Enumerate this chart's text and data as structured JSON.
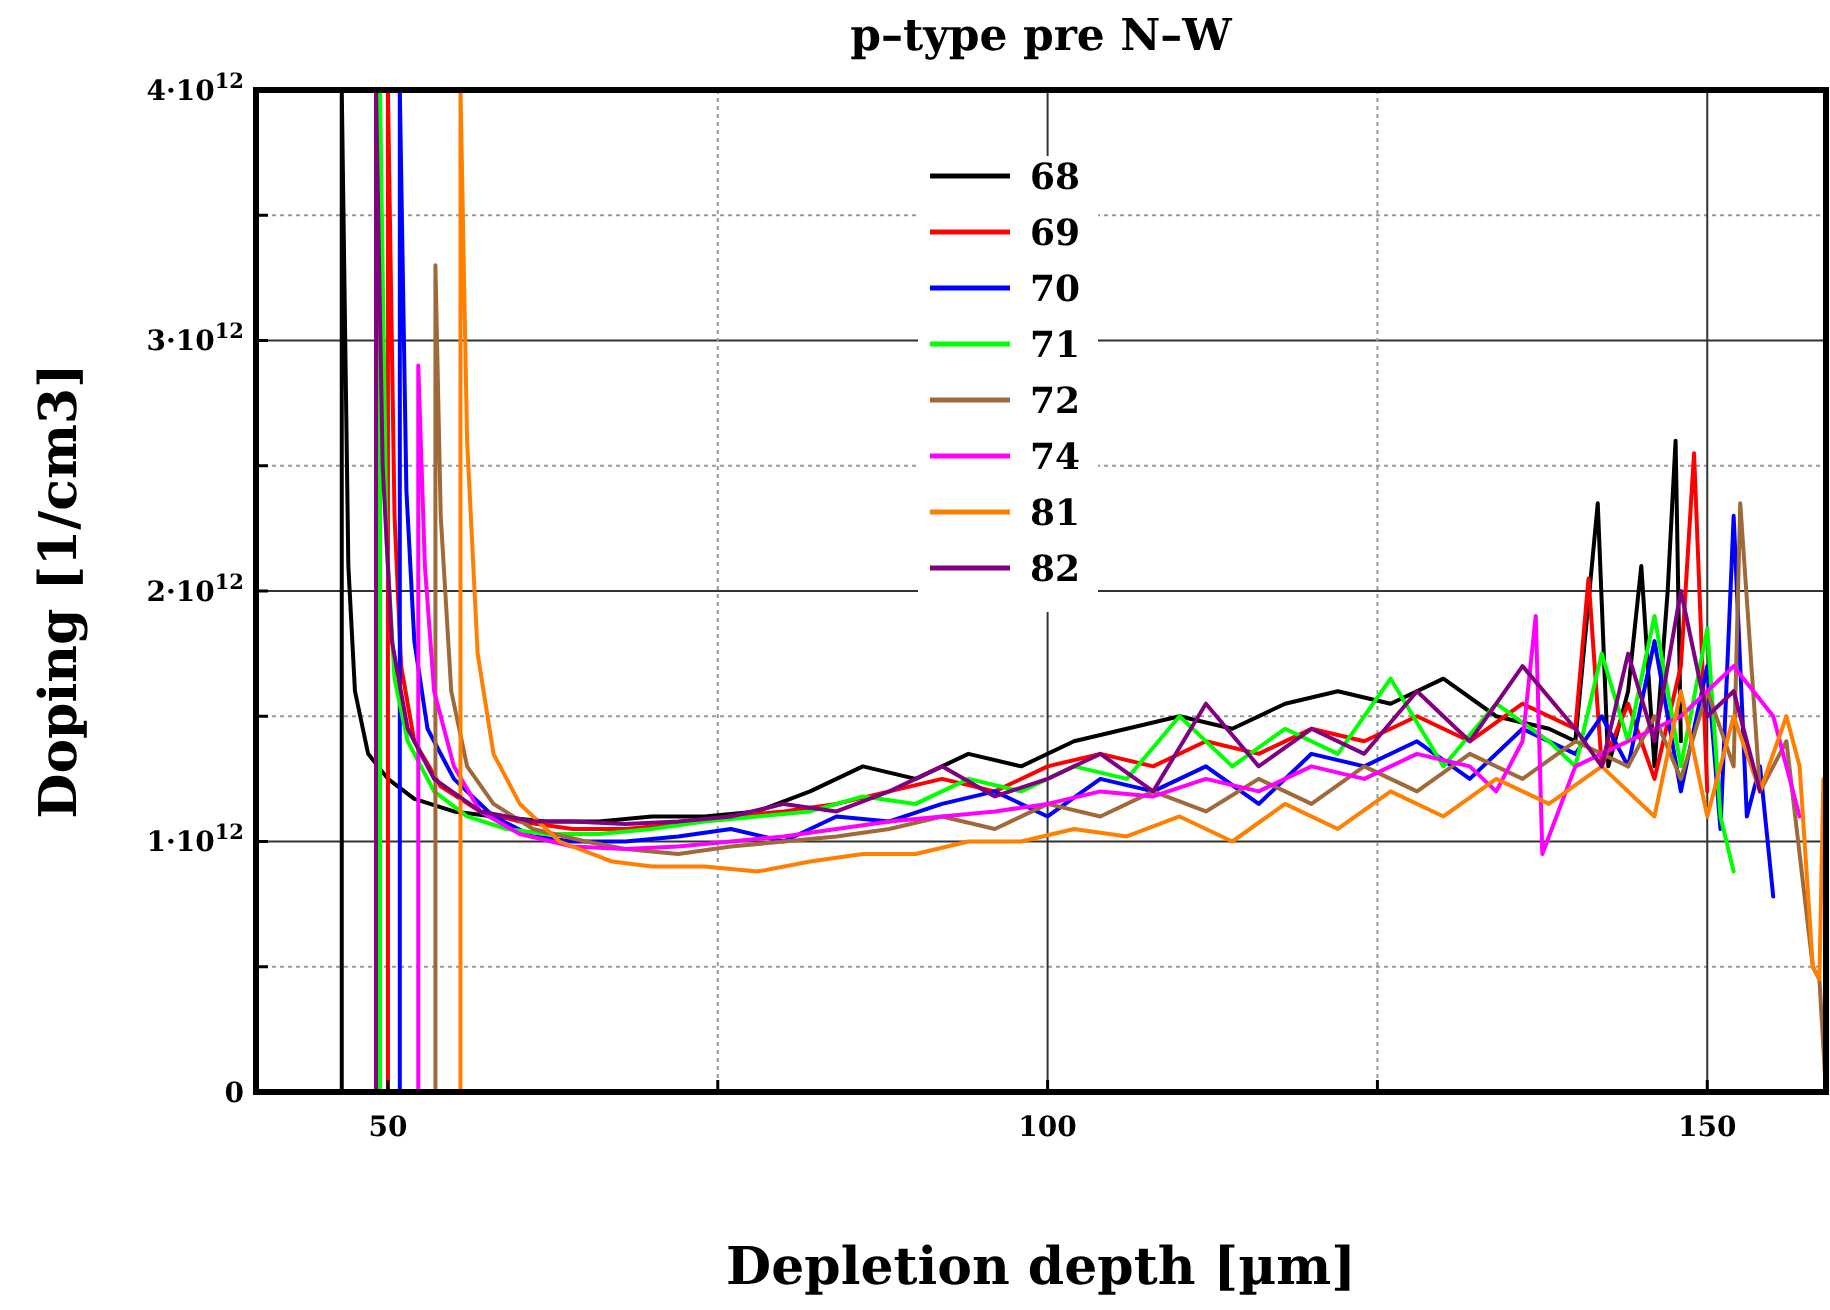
{
  "chart_data": {
    "type": "line",
    "title": "p–type pre N–W",
    "xlabel": "Depletion depth [µm]",
    "ylabel": "Doping [1/cm3]",
    "xlim": [
      40,
      159
    ],
    "xticks": [
      50,
      {
        "value": 75,
        "label": null
      },
      100,
      {
        "value": 125,
        "label": null
      },
      150
    ],
    "ylim": [
      0,
      4000000000000.0
    ],
    "yticks": [
      {
        "value": 0,
        "label": "0"
      },
      {
        "value": 500000000000.0,
        "label": null
      },
      {
        "value": 1000000000000.0,
        "label": "1·10$^{12}$"
      },
      {
        "value": 1500000000000.0,
        "label": null
      },
      {
        "value": 2000000000000.0,
        "label": "2·10$^{12}$"
      },
      {
        "value": 2500000000000.0,
        "label": null
      },
      {
        "value": 3000000000000.0,
        "label": "3·10$^{12}$"
      },
      {
        "value": 3500000000000.0,
        "label": null
      },
      {
        "value": 4000000000000.0,
        "label": "4·10$^{12}$"
      }
    ],
    "grid": true,
    "legend": "top",
    "line_style": "solid",
    "marker": "none",
    "series": [
      {
        "name": "68",
        "color": "#000000",
        "x": [
          46.5,
          46.5,
          47,
          47.5,
          48.5,
          50,
          52,
          55,
          58,
          62,
          66,
          70,
          74,
          78,
          82,
          86,
          90,
          94,
          98,
          102,
          106,
          110,
          114,
          118,
          122,
          126,
          130,
          134,
          138,
          140,
          141.7,
          142.5,
          144,
          145,
          146,
          147,
          147.6,
          148
        ],
        "values": [
          0,
          4000000000000.0,
          2100000000000.0,
          1600000000000.0,
          1350000000000.0,
          1250000000000.0,
          1170000000000.0,
          1120000000000.0,
          1100000000000.0,
          1080000000000.0,
          1080000000000.0,
          1100000000000.0,
          1100000000000.0,
          1120000000000.0,
          1200000000000.0,
          1300000000000.0,
          1250000000000.0,
          1350000000000.0,
          1300000000000.0,
          1400000000000.0,
          1450000000000.0,
          1500000000000.0,
          1450000000000.0,
          1550000000000.0,
          1600000000000.0,
          1550000000000.0,
          1650000000000.0,
          1500000000000.0,
          1450000000000.0,
          1400000000000.0,
          2350000000000.0,
          1300000000000.0,
          1600000000000.0,
          2100000000000.0,
          1300000000000.0,
          2000000000000.0,
          2600000000000.0,
          1400000000000.0
        ]
      },
      {
        "name": "69",
        "color": "#ff0000",
        "x": [
          50,
          50,
          50.5,
          51,
          52,
          54,
          57,
          60,
          64,
          68,
          72,
          76,
          80,
          84,
          88,
          92,
          96,
          100,
          104,
          108,
          112,
          116,
          120,
          124,
          128,
          132,
          136,
          140,
          141,
          142,
          144,
          146,
          148,
          149,
          150
        ],
        "values": [
          0,
          4000000000000.0,
          2300000000000.0,
          1700000000000.0,
          1400000000000.0,
          1220000000000.0,
          1120000000000.0,
          1080000000000.0,
          1050000000000.0,
          1050000000000.0,
          1070000000000.0,
          1100000000000.0,
          1120000000000.0,
          1150000000000.0,
          1200000000000.0,
          1250000000000.0,
          1200000000000.0,
          1300000000000.0,
          1350000000000.0,
          1300000000000.0,
          1400000000000.0,
          1350000000000.0,
          1450000000000.0,
          1400000000000.0,
          1500000000000.0,
          1400000000000.0,
          1550000000000.0,
          1450000000000.0,
          2050000000000.0,
          1300000000000.0,
          1550000000000.0,
          1250000000000.0,
          1700000000000.0,
          2550000000000.0,
          1200000000000.0
        ]
      },
      {
        "name": "70",
        "color": "#0000ff",
        "x": [
          50.9,
          50.9,
          51.4,
          52,
          53,
          55,
          58,
          61,
          64,
          68,
          72,
          76,
          80,
          84,
          88,
          92,
          96,
          100,
          104,
          108,
          112,
          116,
          120,
          124,
          128,
          132,
          136,
          140,
          142,
          144,
          146,
          148,
          150,
          151,
          152,
          153,
          154,
          155
        ],
        "values": [
          0,
          4000000000000.0,
          2400000000000.0,
          1800000000000.0,
          1450000000000.0,
          1250000000000.0,
          1100000000000.0,
          1020000000000.0,
          1000000000000.0,
          1000000000000.0,
          1020000000000.0,
          1050000000000.0,
          1000000000000.0,
          1100000000000.0,
          1080000000000.0,
          1150000000000.0,
          1200000000000.0,
          1100000000000.0,
          1250000000000.0,
          1200000000000.0,
          1300000000000.0,
          1150000000000.0,
          1350000000000.0,
          1300000000000.0,
          1400000000000.0,
          1250000000000.0,
          1450000000000.0,
          1350000000000.0,
          1500000000000.0,
          1300000000000.0,
          1800000000000.0,
          1200000000000.0,
          1700000000000.0,
          1050000000000.0,
          2300000000000.0,
          1100000000000.0,
          1300000000000.0,
          780000000000.0
        ]
      },
      {
        "name": "71",
        "color": "#00ff00",
        "x": [
          49.4,
          49.4,
          49.9,
          50.5,
          51.5,
          53.5,
          56,
          59,
          62,
          66,
          70,
          74,
          78,
          82,
          86,
          90,
          94,
          98,
          102,
          106,
          110,
          114,
          118,
          122,
          126,
          130,
          134,
          138,
          140,
          142,
          144,
          146,
          148,
          150,
          151,
          152
        ],
        "values": [
          0,
          4000000000000.0,
          2200000000000.0,
          1650000000000.0,
          1400000000000.0,
          1200000000000.0,
          1100000000000.0,
          1050000000000.0,
          1030000000000.0,
          1030000000000.0,
          1050000000000.0,
          1080000000000.0,
          1100000000000.0,
          1120000000000.0,
          1180000000000.0,
          1150000000000.0,
          1250000000000.0,
          1200000000000.0,
          1300000000000.0,
          1250000000000.0,
          1500000000000.0,
          1300000000000.0,
          1450000000000.0,
          1350000000000.0,
          1650000000000.0,
          1300000000000.0,
          1550000000000.0,
          1400000000000.0,
          1300000000000.0,
          1750000000000.0,
          1400000000000.0,
          1900000000000.0,
          1300000000000.0,
          1850000000000.0,
          1100000000000.0,
          880000000000.0
        ]
      },
      {
        "name": "72",
        "color": "#a0693a",
        "x": [
          53.6,
          53.6,
          54,
          54.8,
          56,
          58,
          61,
          65,
          68,
          72,
          76,
          80,
          84,
          88,
          92,
          96,
          100,
          104,
          108,
          112,
          116,
          120,
          124,
          128,
          132,
          136,
          140,
          144,
          146,
          148,
          150,
          152,
          152.5,
          154,
          156,
          158,
          158.5,
          159
        ],
        "values": [
          0,
          3300000000000.0,
          2300000000000.0,
          1600000000000.0,
          1300000000000.0,
          1150000000000.0,
          1050000000000.0,
          1000000000000.0,
          970000000000.0,
          950000000000.0,
          980000000000.0,
          1000000000000.0,
          1020000000000.0,
          1050000000000.0,
          1100000000000.0,
          1050000000000.0,
          1150000000000.0,
          1100000000000.0,
          1200000000000.0,
          1120000000000.0,
          1250000000000.0,
          1150000000000.0,
          1300000000000.0,
          1200000000000.0,
          1350000000000.0,
          1250000000000.0,
          1400000000000.0,
          1300000000000.0,
          1500000000000.0,
          1250000000000.0,
          1600000000000.0,
          1300000000000.0,
          2350000000000.0,
          1200000000000.0,
          1400000000000.0,
          500000000000.0,
          450000000000.0,
          0
        ]
      },
      {
        "name": "74",
        "color": "#ff00ff",
        "x": [
          52.3,
          52.3,
          52.8,
          53.5,
          55,
          57,
          60,
          64,
          68,
          72,
          76,
          80,
          84,
          88,
          92,
          96,
          100,
          104,
          108,
          112,
          116,
          120,
          124,
          128,
          132,
          134,
          136,
          137,
          137.5,
          140,
          144,
          148,
          152,
          155,
          157
        ],
        "values": [
          0,
          2900000000000.0,
          2100000000000.0,
          1600000000000.0,
          1300000000000.0,
          1120000000000.0,
          1030000000000.0,
          980000000000.0,
          970000000000.0,
          980000000000.0,
          1000000000000.0,
          1020000000000.0,
          1050000000000.0,
          1080000000000.0,
          1100000000000.0,
          1120000000000.0,
          1150000000000.0,
          1200000000000.0,
          1180000000000.0,
          1250000000000.0,
          1200000000000.0,
          1300000000000.0,
          1250000000000.0,
          1350000000000.0,
          1300000000000.0,
          1200000000000.0,
          1400000000000.0,
          1900000000000.0,
          950000000000.0,
          1300000000000.0,
          1400000000000.0,
          1500000000000.0,
          1700000000000.0,
          1500000000000.0,
          1100000000000.0
        ]
      },
      {
        "name": "81",
        "color": "#ff8000",
        "x": [
          55.5,
          55.5,
          56,
          56.8,
          58,
          60,
          63,
          67,
          70,
          74,
          78,
          82,
          86,
          90,
          94,
          98,
          102,
          106,
          110,
          114,
          118,
          122,
          126,
          130,
          134,
          138,
          142,
          146,
          148,
          150,
          152,
          154,
          156,
          157,
          158,
          158.5,
          158.8
        ],
        "values": [
          0,
          4000000000000.0,
          2600000000000.0,
          1750000000000.0,
          1350000000000.0,
          1150000000000.0,
          1000000000000.0,
          920000000000.0,
          900000000000.0,
          900000000000.0,
          880000000000.0,
          920000000000.0,
          950000000000.0,
          950000000000.0,
          1000000000000.0,
          1000000000000.0,
          1050000000000.0,
          1020000000000.0,
          1100000000000.0,
          1000000000000.0,
          1150000000000.0,
          1050000000000.0,
          1200000000000.0,
          1100000000000.0,
          1250000000000.0,
          1150000000000.0,
          1300000000000.0,
          1100000000000.0,
          1600000000000.0,
          1100000000000.0,
          1500000000000.0,
          1200000000000.0,
          1500000000000.0,
          1300000000000.0,
          500000000000.0,
          450000000000.0,
          1250000000000.0
        ]
      },
      {
        "name": "82",
        "color": "#800080",
        "x": [
          49.1,
          49.1,
          49.6,
          50.3,
          51.5,
          53.5,
          57,
          61,
          64,
          68,
          72,
          76,
          80,
          84,
          88,
          92,
          96,
          100,
          104,
          108,
          112,
          116,
          120,
          124,
          128,
          132,
          136,
          140,
          142,
          144,
          146,
          148,
          150,
          152,
          154
        ],
        "values": [
          0,
          4000000000000.0,
          2500000000000.0,
          1800000000000.0,
          1450000000000.0,
          1250000000000.0,
          1120000000000.0,
          1080000000000.0,
          1080000000000.0,
          1070000000000.0,
          1080000000000.0,
          1100000000000.0,
          1150000000000.0,
          1120000000000.0,
          1200000000000.0,
          1300000000000.0,
          1180000000000.0,
          1250000000000.0,
          1350000000000.0,
          1200000000000.0,
          1550000000000.0,
          1300000000000.0,
          1450000000000.0,
          1350000000000.0,
          1600000000000.0,
          1400000000000.0,
          1700000000000.0,
          1450000000000.0,
          1300000000000.0,
          1750000000000.0,
          1400000000000.0,
          2000000000000.0,
          1500000000000.0,
          1600000000000.0,
          1200000000000.0
        ]
      }
    ]
  }
}
